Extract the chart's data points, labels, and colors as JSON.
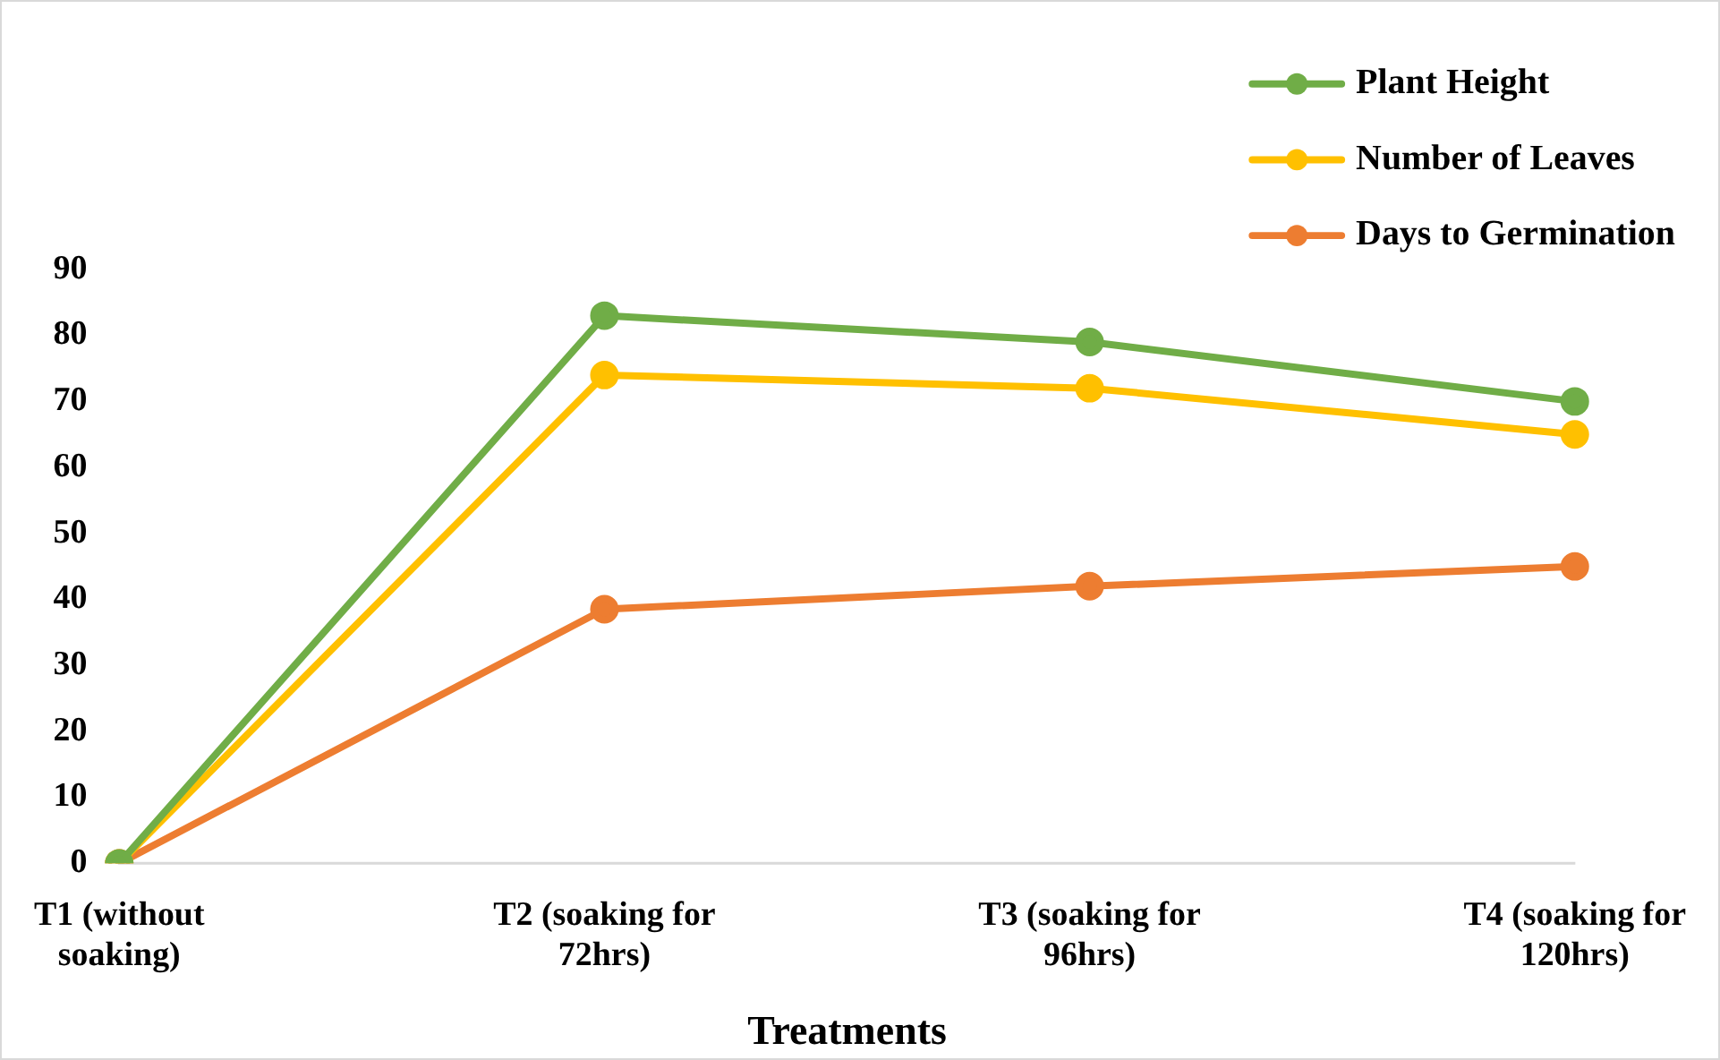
{
  "chart_data": {
    "type": "line",
    "xlabel": "Treatments",
    "categories": [
      "T1 (without soaking)",
      "T2 (soaking for 72hrs)",
      "T3 (soaking for 96hrs)",
      "T4 (soaking for 120hrs)"
    ],
    "series": [
      {
        "name": "Plant Height",
        "color": "#70ad47",
        "values": [
          0,
          83,
          79,
          70
        ]
      },
      {
        "name": "Number of Leaves",
        "color": "#ffc000",
        "values": [
          0,
          74,
          72,
          65
        ]
      },
      {
        "name": "Days to Germination",
        "color": "#ed7d31",
        "values": [
          0,
          38.5,
          42,
          45
        ]
      }
    ],
    "ylim": [
      0,
      90
    ],
    "yticks": [
      0,
      10,
      20,
      30,
      40,
      50,
      60,
      70,
      80,
      90
    ],
    "grid": false,
    "legend": "top right",
    "marker": "circle",
    "line_style": "solid"
  }
}
